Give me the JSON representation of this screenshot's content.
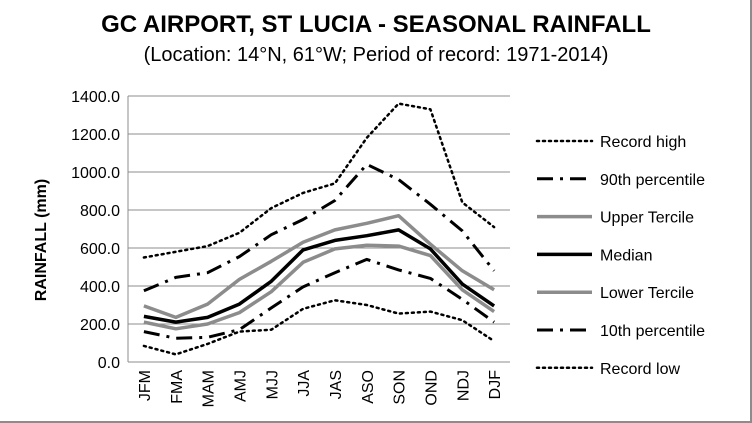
{
  "chart_data": {
    "type": "line",
    "title": "GC AIRPORT, ST LUCIA - SEASONAL RAINFALL",
    "subtitle": "(Location: 14°N, 61°W; Period of record: 1971-2014)",
    "ylabel": "RAINFALL (mm)",
    "xlabel": "",
    "ylim": [
      0,
      1400
    ],
    "ytick_values": [
      0,
      200,
      400,
      600,
      800,
      1000,
      1200,
      1400
    ],
    "ytick_labels": [
      "0.0",
      "200.0",
      "400.0",
      "600.0",
      "800.0",
      "1000.0",
      "1200.0",
      "1400.0"
    ],
    "categories": [
      "JFM",
      "FMA",
      "MAM",
      "AMJ",
      "MJJ",
      "JJA",
      "JAS",
      "ASO",
      "SON",
      "OND",
      "NDJ",
      "DJF"
    ],
    "grid": true,
    "legend_position": "right",
    "series": [
      {
        "name": "Record high",
        "style": "dotted",
        "color": "#000000",
        "values": [
          550,
          580,
          610,
          680,
          810,
          890,
          940,
          1180,
          1360,
          1330,
          840,
          710
        ]
      },
      {
        "name": "90th percentile",
        "style": "dashdot",
        "color": "#000000",
        "values": [
          375,
          445,
          470,
          555,
          670,
          750,
          850,
          1040,
          960,
          830,
          690,
          480
        ]
      },
      {
        "name": "Upper Tercile",
        "style": "solid",
        "color": "#8c8c8c",
        "values": [
          295,
          235,
          305,
          435,
          530,
          630,
          695,
          730,
          770,
          620,
          480,
          380
        ]
      },
      {
        "name": "Median",
        "style": "solid-bold",
        "color": "#000000",
        "values": [
          240,
          210,
          235,
          305,
          425,
          590,
          640,
          665,
          695,
          595,
          410,
          295
        ]
      },
      {
        "name": "Lower Tercile",
        "style": "solid",
        "color": "#8c8c8c",
        "values": [
          210,
          175,
          200,
          260,
          370,
          525,
          595,
          615,
          610,
          560,
          380,
          265
        ]
      },
      {
        "name": "10th percentile",
        "style": "dashdot",
        "color": "#000000",
        "values": [
          160,
          125,
          130,
          170,
          285,
          395,
          470,
          540,
          485,
          440,
          330,
          210
        ]
      },
      {
        "name": "Record low",
        "style": "dotted",
        "color": "#000000",
        "values": [
          85,
          40,
          95,
          160,
          170,
          280,
          325,
          300,
          255,
          265,
          220,
          110
        ]
      }
    ]
  }
}
